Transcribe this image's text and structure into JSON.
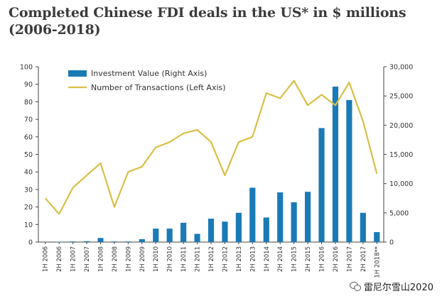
{
  "chart_data": {
    "type": "bar+line",
    "title": "Completed Chinese FDI deals in the US* in $ millions (2006-2018)",
    "categories": [
      "1H 2006",
      "2H 2006",
      "1H 2007",
      "2H 2007",
      "1H 2008",
      "2H 2008",
      "1H 2009",
      "2H 2009",
      "1H 2010",
      "2H 2010",
      "1H 2011",
      "2H 2011",
      "1H 2012",
      "2H 2012",
      "1H 2013",
      "2H 2013",
      "1H 2014",
      "2H 2014",
      "1H 2015",
      "2H 2015",
      "1H 2016",
      "2H 2016",
      "1H 2017",
      "2H 2017",
      "1H 2018**"
    ],
    "series": [
      {
        "name": "Investment Value (Right Axis)",
        "type": "bar",
        "axis": "right",
        "color": "#1a7ab5",
        "values": [
          0,
          50,
          100,
          150,
          700,
          100,
          100,
          500,
          2300,
          2300,
          3300,
          1400,
          4000,
          3500,
          5000,
          9300,
          4200,
          8500,
          6800,
          8600,
          19500,
          26600,
          24300,
          5000,
          1700
        ]
      },
      {
        "name": "Number of Transactions (Left Axis)",
        "type": "line",
        "axis": "left",
        "color": "#d9bf45",
        "values": [
          25,
          16,
          31,
          38,
          45,
          20,
          40,
          43,
          54,
          57,
          62,
          64,
          57,
          38,
          57,
          60,
          85,
          82,
          92,
          78,
          84,
          78,
          91,
          69,
          39
        ]
      }
    ],
    "y_left": {
      "ylim": [
        0,
        100
      ],
      "ticks": [
        "0",
        "10",
        "20",
        "30",
        "40",
        "50",
        "60",
        "70",
        "80",
        "90",
        "100"
      ]
    },
    "y_right": {
      "ylim": [
        0,
        30000
      ],
      "ticks": [
        "0",
        "5,000",
        "10,000",
        "15,000",
        "20,000",
        "25,000",
        "30,000"
      ]
    },
    "legend_position": "top-left",
    "grid": false
  },
  "watermark": {
    "icon": "wechat-icon",
    "text": "雷尼尔雪山2020"
  }
}
